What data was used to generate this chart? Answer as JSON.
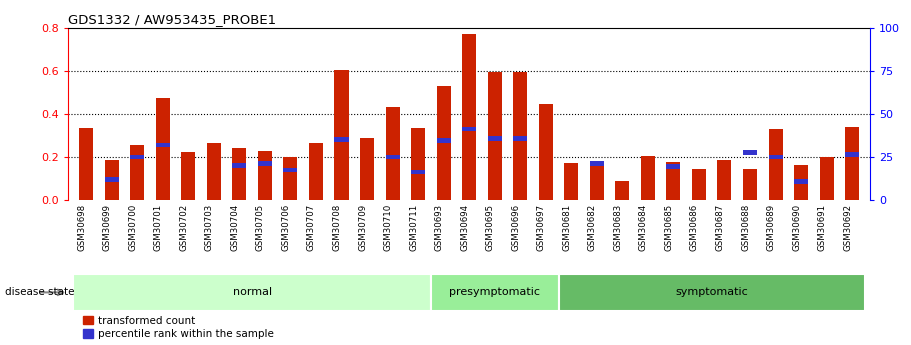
{
  "title": "GDS1332 / AW953435_PROBE1",
  "samples": [
    "GSM30698",
    "GSM30699",
    "GSM30700",
    "GSM30701",
    "GSM30702",
    "GSM30703",
    "GSM30704",
    "GSM30705",
    "GSM30706",
    "GSM30707",
    "GSM30708",
    "GSM30709",
    "GSM30710",
    "GSM30711",
    "GSM30693",
    "GSM30694",
    "GSM30695",
    "GSM30696",
    "GSM30697",
    "GSM30681",
    "GSM30682",
    "GSM30683",
    "GSM30684",
    "GSM30685",
    "GSM30686",
    "GSM30687",
    "GSM30688",
    "GSM30689",
    "GSM30690",
    "GSM30691",
    "GSM30692"
  ],
  "red_values": [
    0.335,
    0.185,
    0.255,
    0.475,
    0.225,
    0.265,
    0.24,
    0.23,
    0.2,
    0.265,
    0.605,
    0.29,
    0.43,
    0.335,
    0.53,
    0.77,
    0.592,
    0.595,
    0.445,
    0.17,
    0.16,
    0.09,
    0.205,
    0.175,
    0.145,
    0.185,
    0.145,
    0.33,
    0.165,
    0.2,
    0.34
  ],
  "blue_values": [
    0.0,
    0.095,
    0.2,
    0.255,
    0.0,
    0.0,
    0.16,
    0.17,
    0.14,
    0.0,
    0.28,
    0.0,
    0.2,
    0.13,
    0.275,
    0.33,
    0.285,
    0.285,
    0.0,
    0.0,
    0.17,
    0.0,
    0.0,
    0.155,
    0.0,
    0.0,
    0.22,
    0.2,
    0.085,
    0.0,
    0.21
  ],
  "groups": [
    {
      "label": "normal",
      "start": 0,
      "end": 14,
      "color": "#ccffcc"
    },
    {
      "label": "presymptomatic",
      "start": 14,
      "end": 19,
      "color": "#99ee99"
    },
    {
      "label": "symptomatic",
      "start": 19,
      "end": 31,
      "color": "#66bb66"
    }
  ],
  "bar_color_red": "#cc2200",
  "bar_color_blue": "#3333cc",
  "bar_width": 0.55,
  "ylim_left": [
    0,
    0.8
  ],
  "ylim_right": [
    0,
    100
  ],
  "yticks_left": [
    0,
    0.2,
    0.4,
    0.6,
    0.8
  ],
  "yticks_right": [
    0,
    25,
    50,
    75,
    100
  ],
  "disease_state_label": "disease state",
  "legend_items": [
    "transformed count",
    "percentile rank within the sample"
  ],
  "background_color": "#ffffff"
}
